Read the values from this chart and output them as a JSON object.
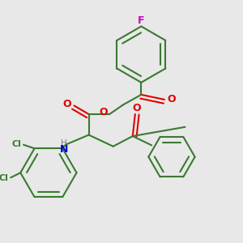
{
  "background_color": "#e8e8e8",
  "bond_color": "#3a7a30",
  "bond_width": 1.5,
  "heteroatom_colors": {
    "O": "#e00000",
    "N": "#0000dd",
    "Cl": "#3a7a30",
    "F": "#cc00cc"
  },
  "figsize": [
    3.0,
    3.0
  ],
  "dpi": 100
}
